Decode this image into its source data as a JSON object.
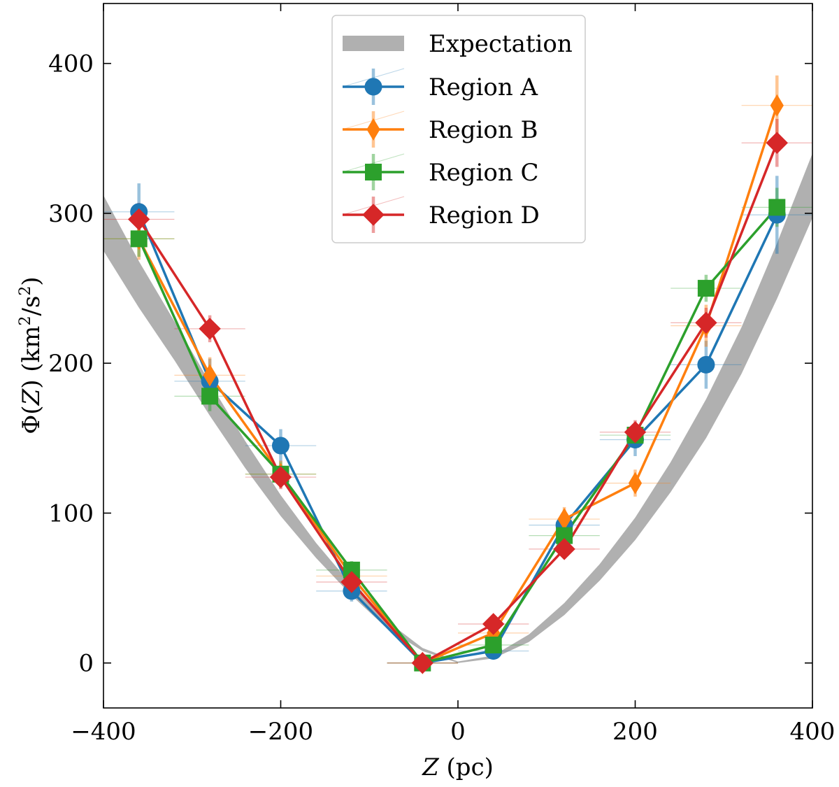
{
  "chart_data": {
    "type": "line",
    "title": "",
    "xlabel_var": "Z",
    "xlabel_unit": " (pc)",
    "ylabel_prefix": "Φ(",
    "ylabel_var": "Z",
    "ylabel_mid": ") (km",
    "ylabel_sup1": "2",
    "ylabel_mid2": "/s",
    "ylabel_sup2": "2",
    "ylabel_suffix": ")",
    "xlim": [
      -400,
      400
    ],
    "ylim": [
      -30,
      440
    ],
    "xticks": [
      -400,
      -200,
      0,
      200,
      400
    ],
    "xtick_labels": [
      "−400",
      "−200",
      "0",
      "200",
      "400"
    ],
    "yticks": [
      0,
      100,
      200,
      300,
      400
    ],
    "ytick_labels": [
      "0",
      "100",
      "200",
      "300",
      "400"
    ],
    "legend_position": "top-center",
    "expectation": {
      "name": "Expectation",
      "color": "#b0b0b0",
      "x": [
        -400,
        -360,
        -320,
        -280,
        -240,
        -200,
        -160,
        -120,
        -80,
        -40,
        0,
        40,
        80,
        120,
        160,
        200,
        240,
        280,
        320,
        360,
        400
      ],
      "lower": [
        275,
        237,
        202,
        165,
        130,
        98,
        70,
        45,
        23,
        8,
        0,
        3,
        14,
        32,
        55,
        82,
        114,
        150,
        193,
        243,
        297
      ],
      "upper": [
        312,
        268,
        228,
        187,
        148,
        112,
        80,
        52,
        28,
        10,
        1,
        5,
        19,
        40,
        66,
        97,
        134,
        176,
        224,
        280,
        340
      ]
    },
    "categories_x": [
      -360,
      -280,
      -200,
      -120,
      -40,
      40,
      120,
      200,
      280,
      360
    ],
    "series": [
      {
        "name": "Region A",
        "color": "#1f77b4",
        "marker": "circle",
        "values": [
          301,
          188,
          145,
          48,
          0,
          8,
          92,
          149,
          199,
          299
        ],
        "yerr": [
          19,
          15,
          11,
          7,
          4,
          4,
          10,
          11,
          16,
          26
        ],
        "xerr": [
          40,
          40,
          40,
          40,
          40,
          40,
          40,
          40,
          40,
          40
        ]
      },
      {
        "name": "Region B",
        "color": "#ff7f0e",
        "marker": "thin_diamond",
        "values": [
          283,
          192,
          126,
          58,
          0,
          20,
          96,
          120,
          225,
          372
        ],
        "yerr": [
          14,
          12,
          9,
          7,
          4,
          4,
          8,
          9,
          14,
          20
        ],
        "xerr": [
          40,
          40,
          40,
          40,
          40,
          40,
          40,
          40,
          40,
          40
        ]
      },
      {
        "name": "Region C",
        "color": "#2ca02c",
        "marker": "square",
        "values": [
          283,
          178,
          126,
          62,
          0,
          12,
          85,
          152,
          250,
          304
        ],
        "yerr": [
          12,
          10,
          8,
          6,
          4,
          4,
          7,
          8,
          9,
          13
        ],
        "xerr": [
          40,
          40,
          40,
          40,
          40,
          40,
          40,
          40,
          40,
          40
        ]
      },
      {
        "name": "Region D",
        "color": "#d62728",
        "marker": "diamond",
        "values": [
          296,
          223,
          124,
          54,
          0,
          26,
          76,
          154,
          227,
          347
        ],
        "yerr": [
          11,
          9,
          8,
          6,
          4,
          4,
          6,
          8,
          10,
          16
        ],
        "xerr": [
          40,
          40,
          40,
          40,
          40,
          40,
          40,
          40,
          40,
          40
        ]
      }
    ]
  }
}
